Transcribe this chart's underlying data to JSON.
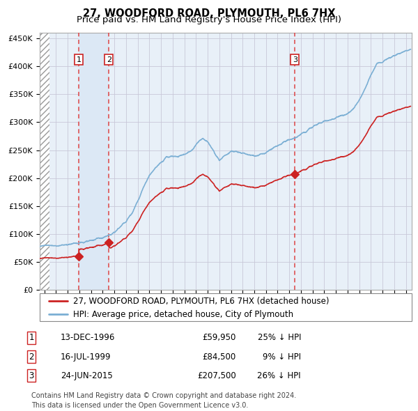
{
  "title": "27, WOODFORD ROAD, PLYMOUTH, PL6 7HX",
  "subtitle": "Price paid vs. HM Land Registry's House Price Index (HPI)",
  "ylim": [
    0,
    460000
  ],
  "yticks": [
    0,
    50000,
    100000,
    150000,
    200000,
    250000,
    300000,
    350000,
    400000,
    450000
  ],
  "ytick_labels": [
    "£0",
    "£50K",
    "£100K",
    "£150K",
    "£200K",
    "£250K",
    "£300K",
    "£350K",
    "£400K",
    "£450K"
  ],
  "xlim_start": 1993.6,
  "xlim_end": 2025.5,
  "hpi_color": "#7bafd4",
  "price_color": "#cc2222",
  "vline_color": "#dd4444",
  "highlight_color": "#dce8f5",
  "background_color": "#ffffff",
  "plot_bg_color": "#e8f0f8",
  "grid_color": "#c8c8d8",
  "sales": [
    {
      "date_num": 1996.96,
      "price": 59950,
      "label": "1"
    },
    {
      "date_num": 1999.54,
      "price": 84500,
      "label": "2"
    },
    {
      "date_num": 2015.48,
      "price": 207500,
      "label": "3"
    }
  ],
  "table_rows": [
    {
      "num": "1",
      "date": "13-DEC-1996",
      "price": "£59,950",
      "change": "25% ↓ HPI"
    },
    {
      "num": "2",
      "date": "16-JUL-1999",
      "price": "£84,500",
      "change": "9% ↓ HPI"
    },
    {
      "num": "3",
      "date": "24-JUN-2015",
      "price": "£207,500",
      "change": "26% ↓ HPI"
    }
  ],
  "legend_entries": [
    "27, WOODFORD ROAD, PLYMOUTH, PL6 7HX (detached house)",
    "HPI: Average price, detached house, City of Plymouth"
  ],
  "footnote": "Contains HM Land Registry data © Crown copyright and database right 2024.\nThis data is licensed under the Open Government Licence v3.0.",
  "title_fontsize": 10.5,
  "subtitle_fontsize": 9.5,
  "tick_fontsize": 8,
  "legend_fontsize": 8.5,
  "table_fontsize": 8.5,
  "footnote_fontsize": 7
}
